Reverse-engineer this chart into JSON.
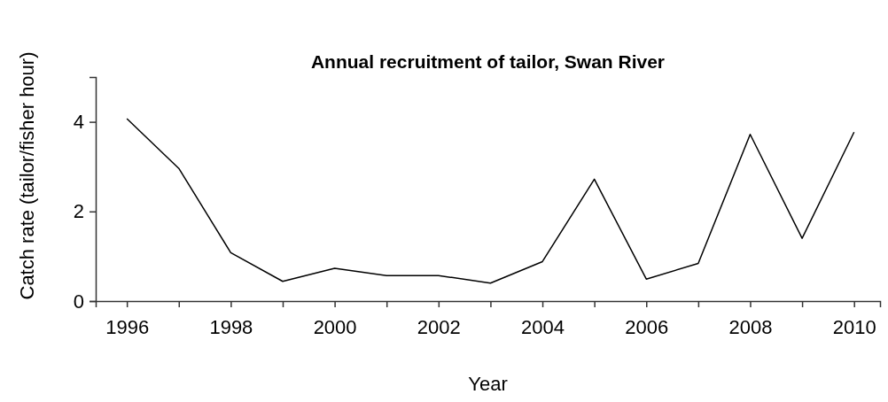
{
  "chart_data": {
    "type": "line",
    "title": "Annual recruitment of tailor, Swan River",
    "xlabel": "Year",
    "ylabel": "Catch rate (tailor/fisher hour)",
    "x": [
      1996,
      1997,
      1998,
      1999,
      2000,
      2001,
      2002,
      2003,
      2004,
      2005,
      2006,
      2007,
      2008,
      2009,
      2010
    ],
    "series": [
      {
        "color": "#000000",
        "values": [
          4.07,
          2.96,
          1.08,
          0.44,
          0.73,
          0.57,
          0.57,
          0.4,
          0.88,
          2.72,
          0.49,
          0.84,
          3.72,
          1.4,
          3.77
        ]
      }
    ],
    "xlim": [
      1995.4,
      2010.5
    ],
    "xticks": [
      1996,
      {
        "value": 1997,
        "label": null
      },
      1998,
      {
        "value": 1999,
        "label": null
      },
      2000,
      {
        "value": 2001,
        "label": null
      },
      2002,
      {
        "value": 2003,
        "label": null
      },
      2004,
      {
        "value": 2005,
        "label": null
      },
      2006,
      {
        "value": 2007,
        "label": null
      },
      2008,
      {
        "value": 2009,
        "label": null
      },
      2010
    ],
    "ylim": [
      0,
      5
    ],
    "yticks": [
      0,
      2,
      4
    ],
    "grid": false,
    "marker": "none",
    "line_style": "solid"
  }
}
